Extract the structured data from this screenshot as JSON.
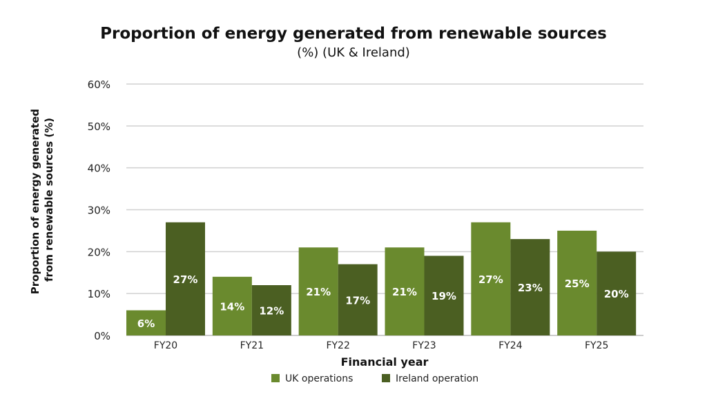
{
  "chart_data": {
    "type": "bar",
    "title": "Proportion of energy generated from renewable sources",
    "subtitle": "(%) (UK & Ireland)",
    "xlabel": "Financial year",
    "ylabel_lines": [
      "Proportion of energy generated",
      "from renewable sources (%)"
    ],
    "categories": [
      "FY20",
      "FY21",
      "FY22",
      "FY23",
      "FY24",
      "FY25"
    ],
    "series": [
      {
        "name": "UK operations",
        "color": "#6a8a2e",
        "values": [
          6,
          14,
          21,
          21,
          27,
          25
        ],
        "labels": [
          "6%",
          "14%",
          "21%",
          "21%",
          "27%",
          "25%"
        ]
      },
      {
        "name": "Ireland operation",
        "color": "#4b5f22",
        "values": [
          27,
          12,
          17,
          19,
          23,
          20
        ],
        "labels": [
          "27%",
          "12%",
          "17%",
          "19%",
          "23%",
          "20%"
        ]
      }
    ],
    "ylim": [
      0,
      60
    ],
    "yticks": [
      0,
      10,
      20,
      30,
      40,
      50,
      60
    ],
    "ytick_labels": [
      "0%",
      "10%",
      "20%",
      "30%",
      "40%",
      "50%",
      "60%"
    ],
    "grid": true,
    "legend_position": "bottom"
  }
}
